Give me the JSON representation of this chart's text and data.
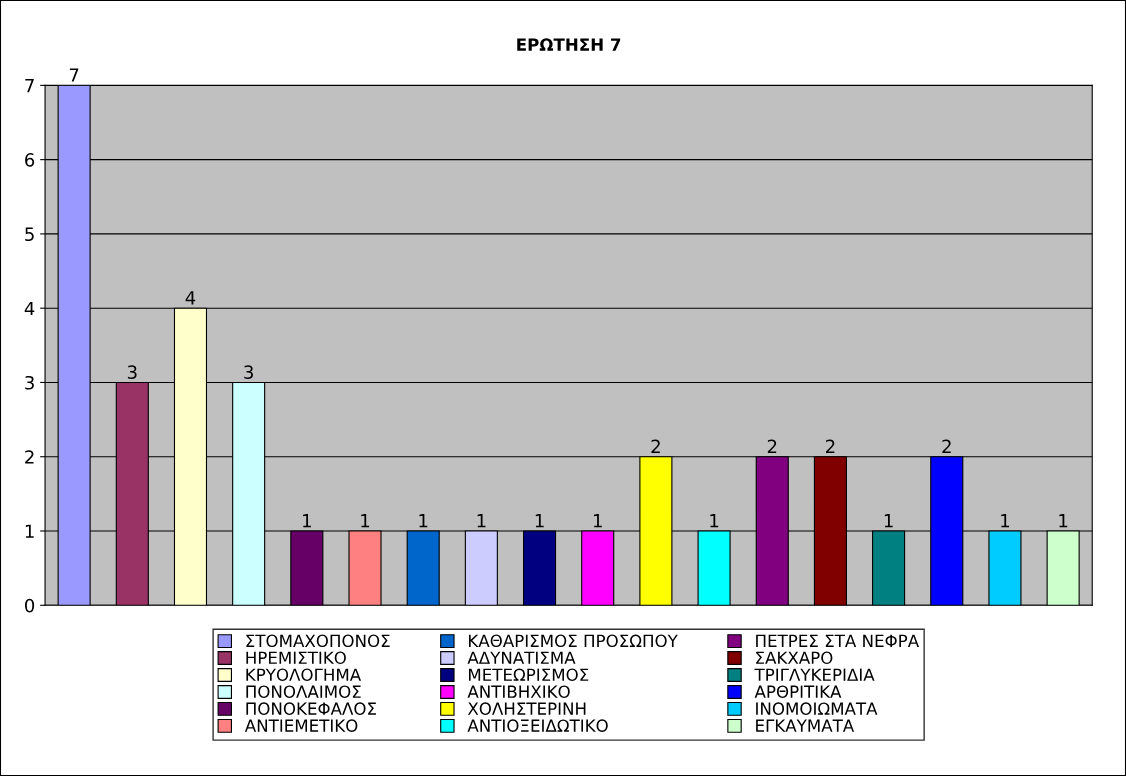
{
  "chart_data": {
    "type": "bar",
    "title": "ΕΡΩΤΗΣΗ 7",
    "categories": [
      null
    ],
    "series": [
      {
        "name": "ΣΤΟΜΑΧΟΠΟΝΟΣ",
        "color": "#9999ff",
        "values": [
          7
        ]
      },
      {
        "name": "ΗΡΕΜΙΣΤΙΚΟ",
        "color": "#993366",
        "values": [
          3
        ]
      },
      {
        "name": "ΚΡΥΟΛΟΓΗΜΑ",
        "color": "#ffffcc",
        "values": [
          4
        ]
      },
      {
        "name": "ΠΟΝΟΛΑΙΜΟΣ",
        "color": "#ccffff",
        "values": [
          3
        ]
      },
      {
        "name": "ΠΟΝΟΚΕΦΑΛΟΣ",
        "color": "#660066",
        "values": [
          1
        ]
      },
      {
        "name": "ΑΝΤΙΕΜΕΤΙΚΟ",
        "color": "#ff8080",
        "values": [
          1
        ]
      },
      {
        "name": "ΚΑΘΑΡΙΣΜΟΣ ΠΡΟΣΩΠΟΥ",
        "color": "#0066cc",
        "values": [
          1
        ]
      },
      {
        "name": "ΑΔΥΝΑΤΙΣΜΑ",
        "color": "#ccccff",
        "values": [
          1
        ]
      },
      {
        "name": "ΜΕΤΕΩΡΙΣΜΟΣ",
        "color": "#000080",
        "values": [
          1
        ]
      },
      {
        "name": "ΑΝΤΙΒΗΧΙΚΟ",
        "color": "#ff00ff",
        "values": [
          1
        ]
      },
      {
        "name": "ΧΟΛΗΣΤΕΡΙΝΗ",
        "color": "#ffff00",
        "values": [
          2
        ]
      },
      {
        "name": "ΑΝΤΙΟΞΕΙΔΩΤΙΚΟ",
        "color": "#00ffff",
        "values": [
          1
        ]
      },
      {
        "name": "ΠΕΤΡΕΣ ΣΤΑ ΝΕΦΡΑ",
        "color": "#800080",
        "values": [
          2
        ]
      },
      {
        "name": "ΣΑΚΧΑΡΟ",
        "color": "#800000",
        "values": [
          2
        ]
      },
      {
        "name": "ΤΡΙΓΛΥΚΕΡΙΔΙΑ",
        "color": "#008080",
        "values": [
          1
        ]
      },
      {
        "name": "ΑΡΘΡΙΤΙΚΑ",
        "color": "#0000ff",
        "values": [
          2
        ]
      },
      {
        "name": "ΙΝΟΜΟΙΩΜΑΤΑ",
        "color": "#00ccff",
        "values": [
          1
        ]
      },
      {
        "name": "ΕΓΚΑΥΜΑΤΑ",
        "color": "#ccffcc",
        "values": [
          1
        ]
      }
    ],
    "ylim": [
      0,
      7
    ],
    "yticks": [
      0,
      1,
      2,
      3,
      4,
      5,
      6,
      7
    ],
    "grid": "y",
    "legend": "bottom",
    "data_labels": true
  }
}
